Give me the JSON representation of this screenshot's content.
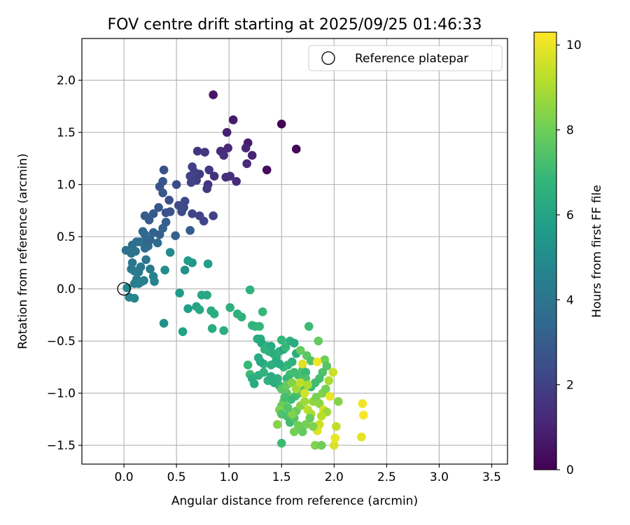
{
  "chart_data": {
    "type": "scatter",
    "title": "FOV centre drift starting at 2025/09/25 01:46:33",
    "xlabel": "Angular distance from reference (arcmin)",
    "ylabel": "Rotation from reference (arcmin)",
    "xlim": [
      -0.4,
      3.65
    ],
    "ylim": [
      -1.68,
      2.4
    ],
    "xticks": [
      0.0,
      0.5,
      1.0,
      1.5,
      2.0,
      2.5,
      3.0,
      3.5
    ],
    "xtick_labels": [
      "0.0",
      "0.5",
      "1.0",
      "1.5",
      "2.0",
      "2.5",
      "3.0",
      "3.5"
    ],
    "yticks": [
      -1.5,
      -1.0,
      -0.5,
      0.0,
      0.5,
      1.0,
      1.5,
      2.0
    ],
    "ytick_labels": [
      "−1.5",
      "−1.0",
      "−0.5",
      "0.0",
      "0.5",
      "1.0",
      "1.5",
      "2.0"
    ],
    "grid": true,
    "legend": {
      "label": "Reference platepar",
      "placement": "top-right"
    },
    "reference_point": {
      "x": 0.0,
      "y": 0.0
    },
    "colorbar": {
      "label": "Hours from first FF file",
      "min": 0,
      "max": 10.3,
      "ticks": [
        0,
        2,
        4,
        6,
        8,
        10
      ],
      "tick_labels": [
        "0",
        "2",
        "4",
        "6",
        "8",
        "10"
      ],
      "colormap": "viridis"
    },
    "colormap_stops": [
      "#440154",
      "#482878",
      "#3e4989",
      "#31688e",
      "#26828e",
      "#1f9e89",
      "#35b779",
      "#6ece58",
      "#b5de2b",
      "#fde725"
    ],
    "points": [
      [
        1.5,
        1.58,
        0.05
      ],
      [
        1.64,
        1.34,
        0.2
      ],
      [
        1.36,
        1.14,
        0.35
      ],
      [
        0.85,
        1.86,
        0.6
      ],
      [
        1.04,
        1.62,
        0.7
      ],
      [
        0.98,
        1.5,
        0.9
      ],
      [
        1.18,
        1.4,
        0.8
      ],
      [
        1.22,
        1.28,
        1.0
      ],
      [
        1.16,
        1.35,
        1.1
      ],
      [
        1.17,
        1.2,
        1.2
      ],
      [
        0.99,
        1.35,
        1.2
      ],
      [
        0.92,
        1.32,
        1.3
      ],
      [
        0.95,
        1.28,
        1.4
      ],
      [
        1.07,
        1.03,
        1.3
      ],
      [
        1.01,
        1.08,
        1.4
      ],
      [
        0.97,
        1.07,
        1.5
      ],
      [
        0.86,
        1.08,
        1.5
      ],
      [
        0.8,
        1.0,
        1.6
      ],
      [
        0.7,
        1.32,
        1.6
      ],
      [
        0.77,
        1.31,
        1.7
      ],
      [
        0.81,
        1.14,
        1.7
      ],
      [
        0.79,
        0.96,
        1.8
      ],
      [
        0.72,
        1.1,
        1.8
      ],
      [
        0.69,
        1.04,
        1.9
      ],
      [
        0.66,
        1.06,
        1.9
      ],
      [
        0.65,
        1.17,
        2.0
      ],
      [
        0.67,
        1.12,
        2.0
      ],
      [
        0.63,
        1.08,
        2.1
      ],
      [
        0.64,
        1.02,
        2.1
      ],
      [
        0.85,
        0.7,
        2.0
      ],
      [
        0.72,
        0.7,
        2.1
      ],
      [
        0.76,
        0.65,
        2.2
      ],
      [
        0.65,
        0.72,
        2.2
      ],
      [
        0.57,
        0.78,
        2.3
      ],
      [
        0.58,
        0.84,
        2.3
      ],
      [
        0.55,
        0.74,
        2.3
      ],
      [
        0.52,
        0.8,
        2.4
      ],
      [
        0.5,
        1.0,
        2.4
      ],
      [
        0.43,
        0.85,
        2.5
      ],
      [
        0.4,
        0.73,
        2.5
      ],
      [
        0.44,
        0.74,
        2.6
      ],
      [
        0.38,
        1.14,
        2.6
      ],
      [
        0.37,
        1.03,
        2.7
      ],
      [
        0.34,
        0.98,
        2.7
      ],
      [
        0.37,
        0.92,
        2.8
      ],
      [
        0.33,
        0.78,
        2.8
      ],
      [
        0.28,
        0.72,
        2.9
      ],
      [
        0.2,
        0.7,
        2.9
      ],
      [
        0.24,
        0.66,
        3.0
      ],
      [
        0.63,
        0.56,
        3.0
      ],
      [
        0.49,
        0.51,
        3.1
      ],
      [
        0.4,
        0.64,
        3.1
      ],
      [
        0.37,
        0.58,
        3.2
      ],
      [
        0.34,
        0.52,
        3.2
      ],
      [
        0.28,
        0.54,
        3.3
      ],
      [
        0.25,
        0.47,
        3.3
      ],
      [
        0.21,
        0.46,
        3.4
      ],
      [
        0.18,
        0.55,
        3.4
      ],
      [
        0.2,
        0.52,
        3.5
      ],
      [
        0.23,
        0.41,
        3.5
      ],
      [
        0.32,
        0.44,
        3.6
      ],
      [
        0.2,
        0.39,
        3.6
      ],
      [
        0.15,
        0.45,
        3.7
      ],
      [
        0.12,
        0.45,
        3.7
      ],
      [
        0.08,
        0.42,
        3.8
      ],
      [
        0.02,
        0.37,
        3.8
      ],
      [
        0.07,
        0.34,
        3.9
      ],
      [
        0.11,
        0.36,
        3.9
      ],
      [
        0.08,
        0.25,
        4.0
      ],
      [
        0.07,
        0.19,
        4.0
      ],
      [
        0.16,
        0.21,
        4.1
      ],
      [
        0.21,
        0.28,
        4.1
      ],
      [
        0.25,
        0.19,
        4.2
      ],
      [
        0.14,
        0.16,
        4.2
      ],
      [
        0.1,
        0.17,
        4.3
      ],
      [
        0.12,
        0.09,
        4.3
      ],
      [
        0.1,
        0.05,
        4.4
      ],
      [
        0.14,
        0.05,
        4.4
      ],
      [
        0.17,
        0.07,
        4.5
      ],
      [
        0.19,
        0.08,
        4.5
      ],
      [
        0.28,
        0.12,
        4.6
      ],
      [
        0.29,
        0.07,
        4.6
      ],
      [
        0.05,
        -0.08,
        4.7
      ],
      [
        0.1,
        -0.09,
        4.7
      ],
      [
        0.03,
        0.01,
        4.8
      ],
      [
        0.38,
        -0.33,
        5.2
      ],
      [
        0.39,
        0.18,
        5.0
      ],
      [
        0.44,
        0.35,
        4.9
      ],
      [
        0.58,
        0.18,
        5.2
      ],
      [
        0.65,
        0.25,
        5.4
      ],
      [
        0.61,
        0.27,
        5.6
      ],
      [
        0.8,
        0.24,
        5.8
      ],
      [
        0.53,
        -0.04,
        5.6
      ],
      [
        0.61,
        -0.19,
        5.8
      ],
      [
        0.56,
        -0.41,
        5.9
      ],
      [
        0.69,
        -0.17,
        6.0
      ],
      [
        0.74,
        -0.06,
        6.1
      ],
      [
        0.79,
        -0.06,
        6.2
      ],
      [
        0.72,
        -0.2,
        6.2
      ],
      [
        0.83,
        -0.21,
        6.3
      ],
      [
        0.84,
        -0.38,
        6.3
      ],
      [
        0.86,
        -0.24,
        6.4
      ],
      [
        0.95,
        -0.4,
        6.4
      ],
      [
        1.01,
        -0.18,
        6.5
      ],
      [
        1.08,
        -0.24,
        6.5
      ],
      [
        1.12,
        -0.27,
        6.6
      ],
      [
        1.2,
        -0.01,
        6.6
      ],
      [
        1.22,
        -0.35,
        6.7
      ],
      [
        1.25,
        -0.36,
        6.7
      ],
      [
        1.32,
        -0.22,
        6.8
      ],
      [
        1.29,
        -0.36,
        6.8
      ],
      [
        1.27,
        -0.48,
        6.3
      ],
      [
        1.3,
        -0.48,
        6.4
      ],
      [
        1.31,
        -0.52,
        6.2
      ],
      [
        1.36,
        -0.55,
        6.5
      ],
      [
        1.34,
        -0.58,
        6.6
      ],
      [
        1.38,
        -0.6,
        6.7
      ],
      [
        1.4,
        -0.55,
        6.3
      ],
      [
        1.42,
        -0.62,
        6.4
      ],
      [
        1.45,
        -0.66,
        6.5
      ],
      [
        1.48,
        -0.6,
        6.6
      ],
      [
        1.5,
        -0.49,
        6.8
      ],
      [
        1.52,
        -0.58,
        6.2
      ],
      [
        1.54,
        -0.56,
        6.9
      ],
      [
        1.58,
        -0.5,
        6.6
      ],
      [
        1.62,
        -0.52,
        6.3
      ],
      [
        1.64,
        -0.62,
        6.4
      ],
      [
        1.6,
        -0.7,
        6.5
      ],
      [
        1.56,
        -0.73,
        6.7
      ],
      [
        1.52,
        -0.75,
        6.8
      ],
      [
        1.48,
        -0.72,
        6.4
      ],
      [
        1.44,
        -0.71,
        6.3
      ],
      [
        1.4,
        -0.73,
        6.5
      ],
      [
        1.33,
        -0.72,
        6.6
      ],
      [
        1.3,
        -0.7,
        6.2
      ],
      [
        1.28,
        -0.66,
        6.3
      ],
      [
        1.18,
        -0.73,
        6.9
      ],
      [
        1.2,
        -0.82,
        7.0
      ],
      [
        1.22,
        -0.86,
        6.4
      ],
      [
        1.24,
        -0.91,
        6.3
      ],
      [
        1.28,
        -0.83,
        6.5
      ],
      [
        1.33,
        -0.8,
        6.6
      ],
      [
        1.37,
        -0.88,
        6.7
      ],
      [
        1.4,
        -0.84,
        6.3
      ],
      [
        1.43,
        -0.9,
        6.4
      ],
      [
        1.46,
        -0.86,
        6.5
      ],
      [
        1.48,
        -0.93,
        6.6
      ],
      [
        1.52,
        -0.95,
        6.7
      ],
      [
        1.55,
        -0.86,
        6.8
      ],
      [
        1.58,
        -0.82,
        7.0
      ],
      [
        1.62,
        -0.8,
        7.1
      ],
      [
        1.66,
        -0.83,
        7.2
      ],
      [
        1.7,
        -0.78,
        7.3
      ],
      [
        1.73,
        -0.8,
        6.9
      ],
      [
        1.76,
        -0.36,
        7.0
      ],
      [
        1.68,
        -0.59,
        7.8
      ],
      [
        1.74,
        -0.64,
        7.6
      ],
      [
        1.78,
        -0.69,
        7.4
      ],
      [
        1.85,
        -0.5,
        7.8
      ],
      [
        1.91,
        -0.68,
        8.0
      ],
      [
        1.93,
        -0.74,
        7.5
      ],
      [
        1.89,
        -0.8,
        7.4
      ],
      [
        1.86,
        -0.86,
        7.2
      ],
      [
        1.82,
        -0.9,
        7.1
      ],
      [
        1.78,
        -0.94,
        6.9
      ],
      [
        1.73,
        -0.86,
        7.3
      ],
      [
        1.7,
        -0.95,
        7.4
      ],
      [
        1.67,
        -1.0,
        7.5
      ],
      [
        1.63,
        -1.03,
        7.2
      ],
      [
        1.59,
        -1.06,
        7.0
      ],
      [
        1.55,
        -1.0,
        7.6
      ],
      [
        1.52,
        -1.08,
        7.8
      ],
      [
        1.5,
        -1.12,
        7.9
      ],
      [
        1.48,
        -1.16,
        8.2
      ],
      [
        1.46,
        -1.3,
        8.4
      ],
      [
        1.5,
        -1.2,
        7.4
      ],
      [
        1.55,
        -1.22,
        7.3
      ],
      [
        1.58,
        -1.28,
        7.1
      ],
      [
        1.62,
        -1.24,
        7.5
      ],
      [
        1.64,
        -1.17,
        7.9
      ],
      [
        1.68,
        -1.12,
        8.4
      ],
      [
        1.72,
        -1.08,
        8.8
      ],
      [
        1.75,
        -1.16,
        9.3
      ],
      [
        1.78,
        -1.2,
        9.0
      ],
      [
        1.8,
        -1.08,
        8.6
      ],
      [
        1.83,
        -1.04,
        8.2
      ],
      [
        1.86,
        -1.1,
        8.5
      ],
      [
        1.89,
        -1.0,
        8.3
      ],
      [
        1.92,
        -0.96,
        8.1
      ],
      [
        1.95,
        -0.88,
        9.0
      ],
      [
        1.99,
        -0.8,
        9.5
      ],
      [
        1.96,
        -1.03,
        10.0
      ],
      [
        1.9,
        -1.16,
        9.6
      ],
      [
        1.93,
        -1.18,
        8.8
      ],
      [
        1.88,
        -1.22,
        9.2
      ],
      [
        1.86,
        -1.3,
        9.5
      ],
      [
        1.84,
        -1.36,
        9.8
      ],
      [
        1.8,
        -1.32,
        8.3
      ],
      [
        1.77,
        -1.24,
        7.9
      ],
      [
        1.73,
        -1.3,
        8.1
      ],
      [
        1.7,
        -1.37,
        7.8
      ],
      [
        1.66,
        -1.31,
        8.0
      ],
      [
        1.62,
        -1.37,
        8.1
      ],
      [
        1.6,
        -1.2,
        8.3
      ],
      [
        1.56,
        -1.14,
        7.5
      ],
      [
        1.53,
        -1.04,
        7.2
      ],
      [
        1.5,
        -0.96,
        7.6
      ],
      [
        1.55,
        -0.92,
        7.8
      ],
      [
        1.6,
        -0.9,
        8.4
      ],
      [
        1.64,
        -0.96,
        8.8
      ],
      [
        1.68,
        -0.9,
        9.3
      ],
      [
        1.72,
        -1.0,
        9.6
      ],
      [
        1.75,
        -0.92,
        9.0
      ],
      [
        1.7,
        -0.72,
        9.8
      ],
      [
        1.84,
        -0.7,
        10.1
      ],
      [
        1.82,
        -1.5,
        8.3
      ],
      [
        1.88,
        -1.5,
        8.0
      ],
      [
        2.0,
        -1.5,
        9.7
      ],
      [
        2.01,
        -1.43,
        10.0
      ],
      [
        2.02,
        -1.32,
        9.3
      ],
      [
        2.04,
        -1.08,
        8.4
      ],
      [
        2.26,
        -1.42,
        9.9
      ],
      [
        2.27,
        -1.1,
        10.1
      ],
      [
        2.28,
        -1.21,
        10.2
      ],
      [
        1.5,
        -1.48,
        7.0
      ]
    ]
  }
}
